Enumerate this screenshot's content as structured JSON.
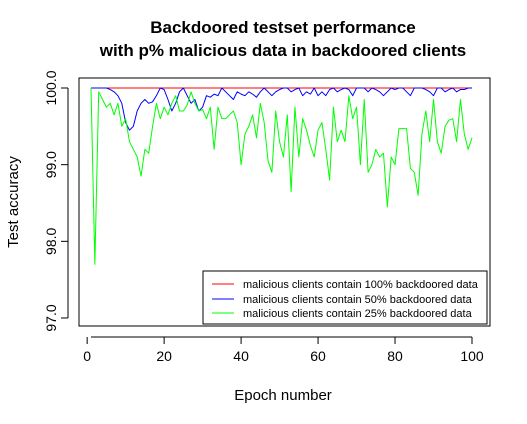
{
  "chart_data": {
    "type": "line",
    "title_line1": "Backdoored testset performance",
    "title_line2": "with p% malicious data in backdoored clients",
    "xlabel": "Epoch number",
    "ylabel": "Test accuracy",
    "xlim": [
      1,
      100
    ],
    "ylim": [
      97.0,
      100.0
    ],
    "x_ticks": [
      "0",
      "20",
      "40",
      "60",
      "80",
      "100"
    ],
    "y_ticks": [
      "97.0",
      "98.0",
      "99.0",
      "100.0"
    ],
    "legend_position": "bottom-right",
    "series": [
      {
        "name": "malicious clients contain 100% backdoored data",
        "color": "#ff0000",
        "x_start": 1,
        "values": [
          100.0,
          100.0,
          100.0,
          100.0,
          100.0,
          100.0,
          100.0,
          100.0,
          100.0,
          100.0,
          100.0,
          100.0,
          100.0,
          100.0,
          100.0,
          100.0,
          100.0,
          100.0,
          100.0,
          100.0,
          100.0,
          100.0,
          100.0,
          100.0,
          100.0,
          100.0,
          100.0,
          100.0,
          100.0,
          100.0,
          100.0,
          100.0,
          100.0,
          100.0,
          100.0,
          100.0,
          100.0,
          100.0,
          100.0,
          100.0,
          100.0,
          100.0,
          100.0,
          100.0,
          100.0,
          100.0,
          100.0,
          100.0,
          100.0,
          100.0,
          100.0,
          100.0,
          100.0,
          100.0,
          100.0,
          100.0,
          100.0,
          100.0,
          100.0,
          100.0,
          100.0,
          100.0,
          100.0,
          100.0,
          100.0,
          100.0,
          100.0,
          100.0,
          100.0,
          100.0,
          100.0,
          100.0,
          100.0,
          100.0,
          100.0,
          100.0,
          100.0,
          100.0,
          100.0,
          100.0,
          100.0,
          100.0,
          100.0,
          100.0,
          100.0,
          100.0,
          100.0,
          100.0,
          100.0,
          100.0,
          100.0,
          100.0,
          100.0,
          100.0,
          100.0,
          100.0,
          100.0,
          100.0,
          100.0,
          100.0
        ]
      },
      {
        "name": "malicious clients contain 50% backdoored data",
        "color": "#0000ff",
        "x_start": 1,
        "values": [
          100.0,
          100.0,
          100.0,
          100.0,
          100.0,
          99.98,
          99.95,
          99.9,
          99.8,
          99.55,
          99.45,
          99.5,
          99.7,
          99.8,
          99.85,
          99.8,
          99.82,
          99.9,
          100.0,
          99.98,
          99.85,
          99.7,
          99.8,
          99.95,
          100.0,
          99.9,
          99.8,
          99.85,
          99.7,
          99.75,
          99.9,
          99.88,
          99.92,
          99.9,
          100.0,
          99.95,
          99.9,
          99.85,
          99.95,
          99.92,
          99.9,
          99.95,
          99.92,
          99.88,
          99.95,
          100.0,
          99.95,
          99.9,
          99.95,
          99.98,
          100.0,
          100.0,
          99.95,
          99.98,
          100.0,
          99.9,
          99.95,
          99.92,
          100.0,
          99.9,
          99.95,
          99.9,
          99.98,
          100.0,
          99.95,
          99.98,
          100.0,
          99.98,
          99.9,
          100.0,
          100.0,
          100.0,
          99.95,
          100.0,
          99.98,
          99.95,
          99.9,
          99.95,
          100.0,
          99.98,
          100.0,
          100.0,
          99.95,
          99.9,
          100.0,
          100.0,
          100.0,
          99.98,
          99.95,
          99.9,
          100.0,
          100.0,
          99.95,
          99.98,
          100.0,
          99.95,
          99.98,
          99.98,
          100.0,
          100.0
        ]
      },
      {
        "name": "malicious clients contain 25% backdoored data",
        "color": "#00ff00",
        "x_start": 1,
        "values": [
          100.0,
          97.7,
          99.95,
          99.85,
          99.75,
          99.8,
          99.65,
          99.8,
          99.5,
          99.6,
          99.3,
          99.2,
          99.1,
          98.85,
          99.2,
          99.15,
          99.5,
          99.8,
          99.6,
          99.75,
          99.65,
          99.8,
          99.9,
          99.7,
          99.7,
          99.78,
          99.95,
          99.8,
          99.7,
          99.72,
          99.6,
          99.75,
          99.2,
          99.75,
          99.6,
          99.6,
          99.65,
          99.7,
          99.55,
          99.0,
          99.4,
          99.5,
          99.65,
          99.35,
          99.8,
          99.55,
          99.05,
          98.9,
          99.7,
          99.3,
          99.1,
          99.65,
          98.65,
          99.75,
          99.1,
          99.6,
          99.45,
          99.25,
          99.1,
          99.45,
          99.55,
          99.2,
          98.8,
          99.75,
          99.3,
          99.45,
          99.3,
          99.9,
          99.6,
          99.75,
          99.0,
          99.85,
          98.9,
          99.0,
          99.2,
          99.1,
          99.15,
          98.45,
          99.1,
          99.0,
          99.47,
          99.47,
          99.47,
          98.95,
          98.9,
          98.6,
          99.4,
          99.7,
          99.3,
          99.85,
          99.3,
          99.15,
          99.5,
          99.58,
          99.6,
          99.3,
          99.85,
          99.4,
          99.2,
          99.35
        ]
      }
    ]
  }
}
